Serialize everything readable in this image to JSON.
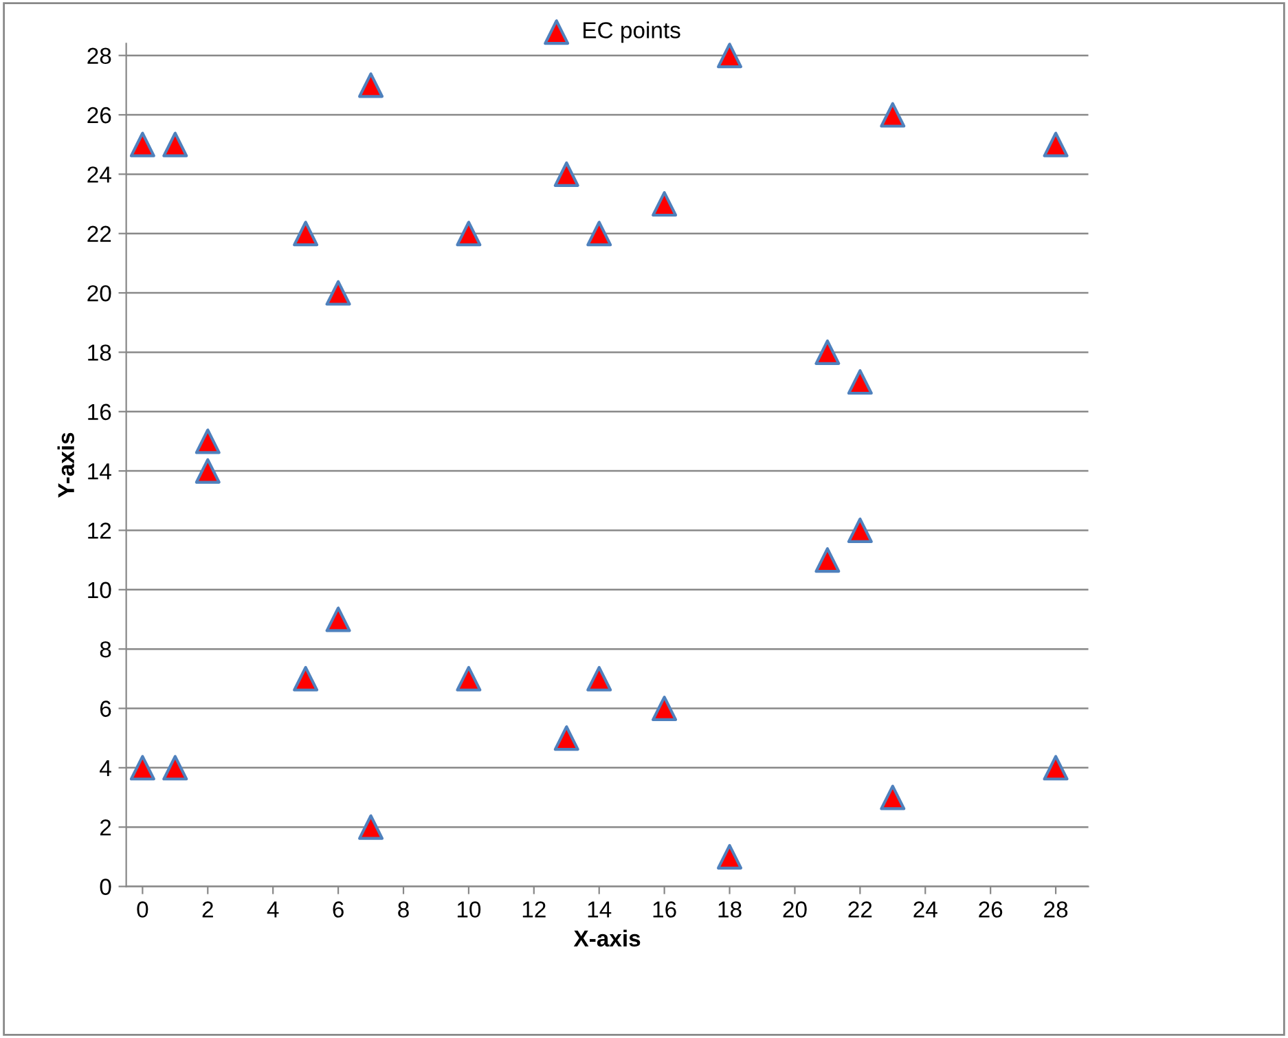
{
  "chart_data": {
    "type": "scatter",
    "xlabel": "X-axis",
    "ylabel": "Y-axis",
    "series": [
      {
        "name": "EC points",
        "color": "#ff0000",
        "x": [
          0,
          0,
          1,
          1,
          2,
          2,
          5,
          5,
          6,
          6,
          7,
          7,
          10,
          10,
          13,
          13,
          14,
          14,
          16,
          16,
          18,
          18,
          21,
          21,
          22,
          22,
          23,
          23,
          28,
          28
        ],
        "values": [
          25,
          4,
          25,
          4,
          15,
          14,
          22,
          7,
          20,
          9,
          27,
          2,
          22,
          7,
          24,
          5,
          22,
          7,
          23,
          6,
          28,
          1,
          18,
          11,
          17,
          12,
          26,
          3,
          25,
          4
        ]
      }
    ],
    "marker": "triangle",
    "grid": "y",
    "legend": "top",
    "xlim": [
      -0.5,
      29
    ],
    "ylim": [
      0,
      28.4
    ],
    "xticks": [
      0,
      2,
      4,
      6,
      8,
      10,
      12,
      14,
      16,
      18,
      20,
      22,
      24,
      26,
      28
    ],
    "yticks": [
      0,
      2,
      4,
      6,
      8,
      10,
      12,
      14,
      16,
      18,
      20,
      22,
      24,
      26,
      28
    ]
  }
}
